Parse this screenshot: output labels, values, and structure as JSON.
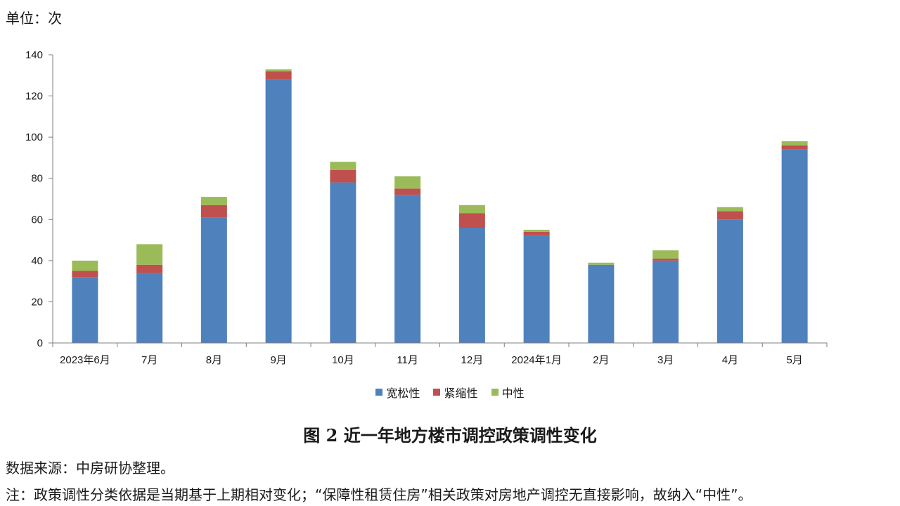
{
  "unit_label": "单位：次",
  "figure_title": "图 2  近一年地方楼市调控政策调性变化",
  "source": "数据来源：中房研协整理。",
  "note": "注：政策调性分类依据是当期基于上期相对变化；“保障性租赁住房”相关政策对房地产调控无直接影响，故纳入“中性”。",
  "colors": {
    "宽松性": "#4f81bd",
    "紧缩性": "#c0504d",
    "中性": "#9bbb59",
    "axis": "#7f7f7f"
  },
  "chart_data": {
    "type": "bar",
    "stacked": true,
    "categories": [
      "2023年6月",
      "7月",
      "8月",
      "9月",
      "10月",
      "11月",
      "12月",
      "2024年1月",
      "2月",
      "3月",
      "4月",
      "5月"
    ],
    "series": [
      {
        "name": "宽松性",
        "values": [
          32,
          34,
          61,
          128,
          78,
          72,
          56,
          52,
          38,
          40,
          60,
          94
        ]
      },
      {
        "name": "紧缩性",
        "values": [
          3,
          4,
          6,
          4,
          6,
          3,
          7,
          2,
          0,
          1,
          4,
          2
        ]
      },
      {
        "name": "中性",
        "values": [
          5,
          10,
          4,
          1,
          4,
          6,
          4,
          1,
          1,
          4,
          2,
          2
        ]
      }
    ],
    "ylim": [
      0,
      140
    ],
    "yticks": [
      0,
      20,
      40,
      60,
      80,
      100,
      120,
      140
    ],
    "legend_position": "bottom-center",
    "grid": false
  }
}
